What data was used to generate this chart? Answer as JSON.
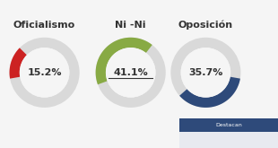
{
  "title_bar_color": "#2e4a7a",
  "background_color": "#f5f5f5",
  "charts": [
    {
      "label": "Oficialismo",
      "value": 15.2,
      "value_str": "15.2%",
      "color": "#cc2222",
      "bg_color": "#d9d9d9",
      "underline": false,
      "start_angle": 190,
      "direction": -1
    },
    {
      "label": "Ni -Ni",
      "value": 41.1,
      "value_str": "41.1%",
      "color": "#88aa44",
      "bg_color": "#d9d9d9",
      "underline": true,
      "start_angle": 200,
      "direction": -1
    },
    {
      "label": "Oposición",
      "value": 35.7,
      "value_str": "35.7%",
      "color": "#2e4a7a",
      "bg_color": "#d9d9d9",
      "underline": false,
      "start_angle": -10,
      "direction": -1
    }
  ],
  "legend_header": "Destacan",
  "legend_header_color": "#2e4a7a",
  "legend_header_text_color": "#ffffff",
  "legend_row_color": "#e8eaf0",
  "label_fontsize": 8,
  "value_fontsize": 8
}
